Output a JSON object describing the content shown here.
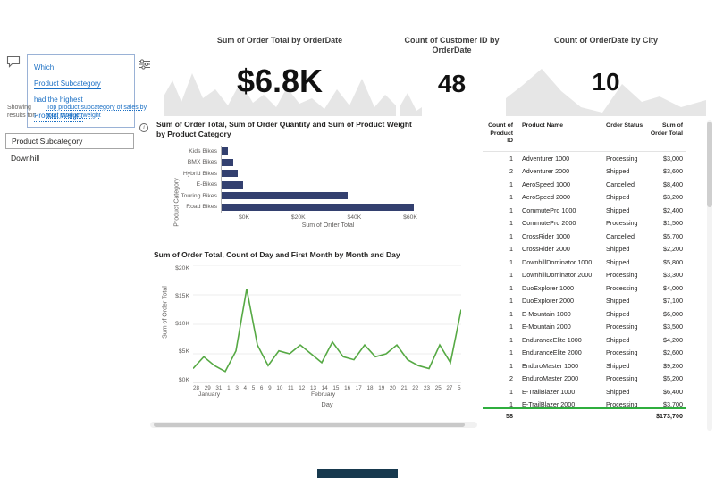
{
  "colors": {
    "bar_fill": "#33406f",
    "line_stroke": "#56a944",
    "sparkline_fill": "#e6e6e6",
    "qa_term_blue": "#1a6fc4",
    "total_separator_green": "#2fae3e"
  },
  "icons": {
    "qa": "speech-bubble-icon",
    "qa_settings": "sliders-icon",
    "bar_info": "info-icon"
  },
  "qa": {
    "question": {
      "line1": "Which",
      "line2": "Product Subcategory",
      "line3": "had the highest",
      "line4": "Product Weight"
    },
    "showing_label": "Showing results for:",
    "showing_text": "Top product subcategory of sales by total product weight"
  },
  "slicer": {
    "title": "Product Subcategory",
    "value": "Downhill"
  },
  "kpis": [
    {
      "title": "Sum of Order Total by OrderDate",
      "value": "$6.8K"
    },
    {
      "title": "Count of Customer ID by OrderDate",
      "value": "48"
    },
    {
      "title": "Count of OrderDate by City",
      "value": "10"
    }
  ],
  "chart_data": [
    {
      "type": "bar",
      "orientation": "horizontal",
      "title": "Sum of Order Total, Sum of Order Quantity and Sum of Product Weight by Product Category",
      "categories": [
        "Kids Bikes",
        "BMX Bikes",
        "Hybrid Bikes",
        "E-Bikes",
        "Touring Bikes",
        "Road Bikes"
      ],
      "values": [
        2000,
        3500,
        5000,
        6500,
        38500,
        59000
      ],
      "xlabel": "Sum of Order Total",
      "ylabel": "Product Category",
      "x_ticks": [
        "$0K",
        "$20K",
        "$40K",
        "$60K"
      ],
      "xlim": [
        0,
        60000
      ],
      "grid": false
    },
    {
      "type": "line",
      "title": "Sum of Order Total, Count of Day and First Month by Month and Day",
      "x": [
        "28",
        "29",
        "31",
        "1",
        "3",
        "4",
        "5",
        "6",
        "9",
        "10",
        "11",
        "12",
        "13",
        "14",
        "15",
        "16",
        "17",
        "18",
        "19",
        "20",
        "21",
        "22",
        "23",
        "25",
        "27",
        "5"
      ],
      "values": [
        2500,
        4500,
        3000,
        2000,
        5500,
        16000,
        6500,
        3000,
        5500,
        5000,
        6500,
        5000,
        3500,
        7000,
        4500,
        4000,
        6500,
        4500,
        5000,
        6500,
        4000,
        3000,
        2500,
        6500,
        3500,
        12500
      ],
      "xlabel": "Day",
      "ylabel": "Sum of Order Total",
      "y_ticks": [
        "$0K",
        "$5K",
        "$10K",
        "$15K",
        "$20K"
      ],
      "ylim": [
        0,
        20000
      ],
      "month_labels": [
        {
          "label": "January",
          "pos": 0.02
        },
        {
          "label": "February",
          "pos": 0.44
        }
      ],
      "grid": true
    }
  ],
  "table": {
    "columns": [
      "Count of Product ID",
      "Product Name",
      "Order Status",
      "Sum of Order Total"
    ],
    "rows": [
      [
        "1",
        "Adventurer 1000",
        "Processing",
        "$3,000"
      ],
      [
        "2",
        "Adventurer 2000",
        "Shipped",
        "$3,600"
      ],
      [
        "1",
        "AeroSpeed 1000",
        "Cancelled",
        "$8,400"
      ],
      [
        "1",
        "AeroSpeed 2000",
        "Shipped",
        "$3,200"
      ],
      [
        "1",
        "CommutePro 1000",
        "Shipped",
        "$2,400"
      ],
      [
        "1",
        "CommutePro 2000",
        "Processing",
        "$1,500"
      ],
      [
        "1",
        "CrossRider 1000",
        "Cancelled",
        "$5,700"
      ],
      [
        "1",
        "CrossRider 2000",
        "Shipped",
        "$2,200"
      ],
      [
        "1",
        "DownhillDominator 1000",
        "Shipped",
        "$5,800"
      ],
      [
        "1",
        "DownhillDominator 2000",
        "Processing",
        "$3,300"
      ],
      [
        "1",
        "DuoExplorer 1000",
        "Processing",
        "$4,000"
      ],
      [
        "1",
        "DuoExplorer 2000",
        "Shipped",
        "$7,100"
      ],
      [
        "1",
        "E-Mountain 1000",
        "Shipped",
        "$6,000"
      ],
      [
        "1",
        "E-Mountain 2000",
        "Processing",
        "$3,500"
      ],
      [
        "1",
        "EnduranceElite 1000",
        "Shipped",
        "$4,200"
      ],
      [
        "1",
        "EnduranceElite 2000",
        "Processing",
        "$2,600"
      ],
      [
        "1",
        "EnduroMaster 1000",
        "Shipped",
        "$9,200"
      ],
      [
        "2",
        "EnduroMaster 2000",
        "Processing",
        "$5,200"
      ],
      [
        "1",
        "E-TrailBlazer 1000",
        "Shipped",
        "$6,400"
      ],
      [
        "1",
        "E-TrailBlazer 2000",
        "Processing",
        "$3,700"
      ]
    ],
    "total": {
      "count": "58",
      "order_total": "$173,700"
    }
  }
}
